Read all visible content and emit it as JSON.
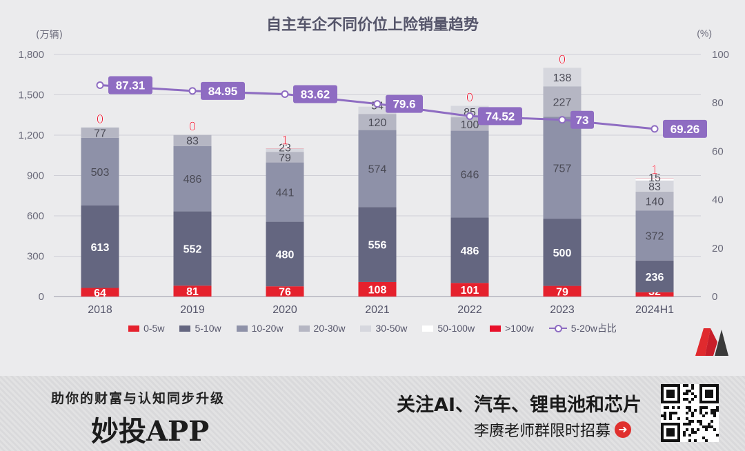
{
  "chart_data": {
    "type": "bar",
    "title": "自主车企不同价位上险销量趋势",
    "y_left_unit": "(万辆)",
    "y_right_unit": "(%)",
    "categories": [
      "2018",
      "2019",
      "2020",
      "2021",
      "2022",
      "2023",
      "2024H1"
    ],
    "ylim": [
      0,
      1800
    ],
    "yticks": [
      "0",
      "300",
      "600",
      "900",
      "1,200",
      "1,500",
      "1,800"
    ],
    "ylim_right": [
      0,
      100
    ],
    "yticks_right": [
      "0",
      "20",
      "40",
      "60",
      "80",
      "100"
    ],
    "series": [
      {
        "name": "0-5w",
        "color": "#e5212d",
        "label_color": "#ffffff",
        "values": [
          64,
          81,
          76,
          108,
          101,
          79,
          32
        ]
      },
      {
        "name": "5-10w",
        "color": "#646680",
        "label_color": "#ffffff",
        "values": [
          613,
          552,
          480,
          556,
          486,
          500,
          236
        ]
      },
      {
        "name": "10-20w",
        "color": "#8e91a8",
        "label_color": "#4a4a55",
        "values": [
          503,
          486,
          441,
          574,
          646,
          757,
          372
        ]
      },
      {
        "name": "20-30w",
        "color": "#b5b6c3",
        "label_color": "#4a4a55",
        "values": [
          77,
          83,
          79,
          120,
          100,
          227,
          140
        ]
      },
      {
        "name": "30-50w",
        "color": "#d6d7de",
        "label_color": "#4a4a55",
        "values": [
          null,
          null,
          23,
          54,
          85,
          138,
          83
        ]
      },
      {
        "name": "50-100w",
        "color": "#ffffff",
        "label_color": "#4a4a55",
        "values": [
          null,
          null,
          null,
          null,
          null,
          null,
          15
        ]
      },
      {
        "name": ">100w",
        "color": "#e8102a",
        "label_color": "#e8102a",
        "values": [
          0,
          0,
          1,
          null,
          0,
          0,
          1
        ]
      }
    ],
    "line": {
      "name": "5-20w占比",
      "color": "#8e6cc2",
      "values": [
        87.31,
        84.95,
        83.62,
        79.6,
        74.52,
        73,
        69.26
      ]
    },
    "legend_position": "bottom"
  },
  "banner": {
    "slogan": "助你的财富与认知同步升级",
    "app_name": "妙投APP",
    "promo_line1": "关注AI、汽车、锂电池和芯片",
    "promo_line2": "李赓老师群限时招募"
  },
  "icons": {
    "logo": "brand-m-logo",
    "arrow": "arrow-right-icon",
    "qr": "qr-code"
  }
}
